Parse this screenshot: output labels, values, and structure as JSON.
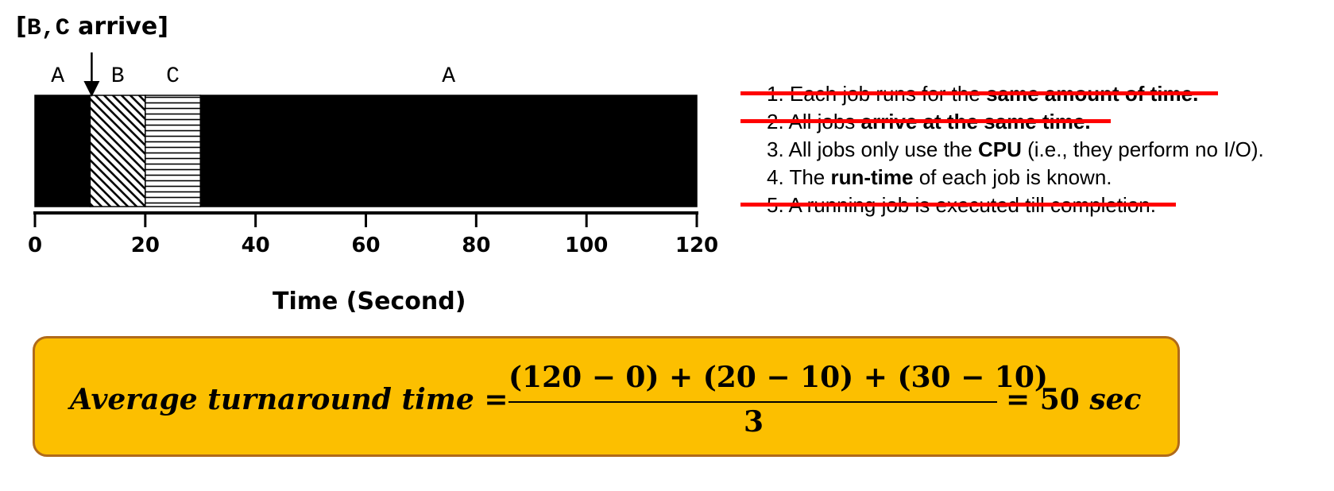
{
  "arrive_label": {
    "open": "[",
    "jobs": "B,C",
    "text": " arrive]"
  },
  "timeline": {
    "segments": [
      {
        "job": "A",
        "start": 0,
        "end": 10,
        "fill": "solid",
        "label": "A"
      },
      {
        "job": "B",
        "start": 10,
        "end": 20,
        "fill": "diagonal",
        "label": "B"
      },
      {
        "job": "C",
        "start": 20,
        "end": 30,
        "fill": "horizontal",
        "label": "C"
      },
      {
        "job": "A",
        "start": 30,
        "end": 120,
        "fill": "solid",
        "label": "A"
      }
    ],
    "arrival_time": 10,
    "axis": {
      "min": 0,
      "max": 120,
      "ticks": [
        0,
        20,
        40,
        60,
        80,
        100,
        120
      ]
    },
    "xlabel": "Time (Second)"
  },
  "assumptions": [
    {
      "number": "1.",
      "parts": [
        {
          "text": " Each job runs for the ",
          "bold": false
        },
        {
          "text": "same amount of time.",
          "bold": true
        }
      ],
      "struck": true
    },
    {
      "number": "2.",
      "parts": [
        {
          "text": " All jobs ",
          "bold": false
        },
        {
          "text": "arrive at the same time.",
          "bold": true
        }
      ],
      "struck": true
    },
    {
      "number": "3.",
      "parts": [
        {
          "text": " All jobs only use the ",
          "bold": false
        },
        {
          "text": "CPU",
          "bold": true
        },
        {
          "text": " (i.e., they perform no I/O).",
          "bold": false
        }
      ],
      "struck": false
    },
    {
      "number": "4.",
      "parts": [
        {
          "text": " The ",
          "bold": false
        },
        {
          "text": "run-time",
          "bold": true
        },
        {
          "text": " of each job is known.",
          "bold": false
        }
      ],
      "struck": false
    },
    {
      "number": "5.",
      "parts": [
        {
          "text": " A running job is executed till completion.",
          "bold": false
        }
      ],
      "struck": true
    }
  ],
  "formula": {
    "lhs": "Average turnaround time =",
    "numerator": "(120 − 0) + (20 − 10) + (30 − 10)",
    "denominator": "3",
    "equals": "= ",
    "result": "50",
    "unit": " sec"
  },
  "colors": {
    "strike": "#ff0000",
    "box_fill": "#fcbf00",
    "box_border": "#b06a1a"
  }
}
